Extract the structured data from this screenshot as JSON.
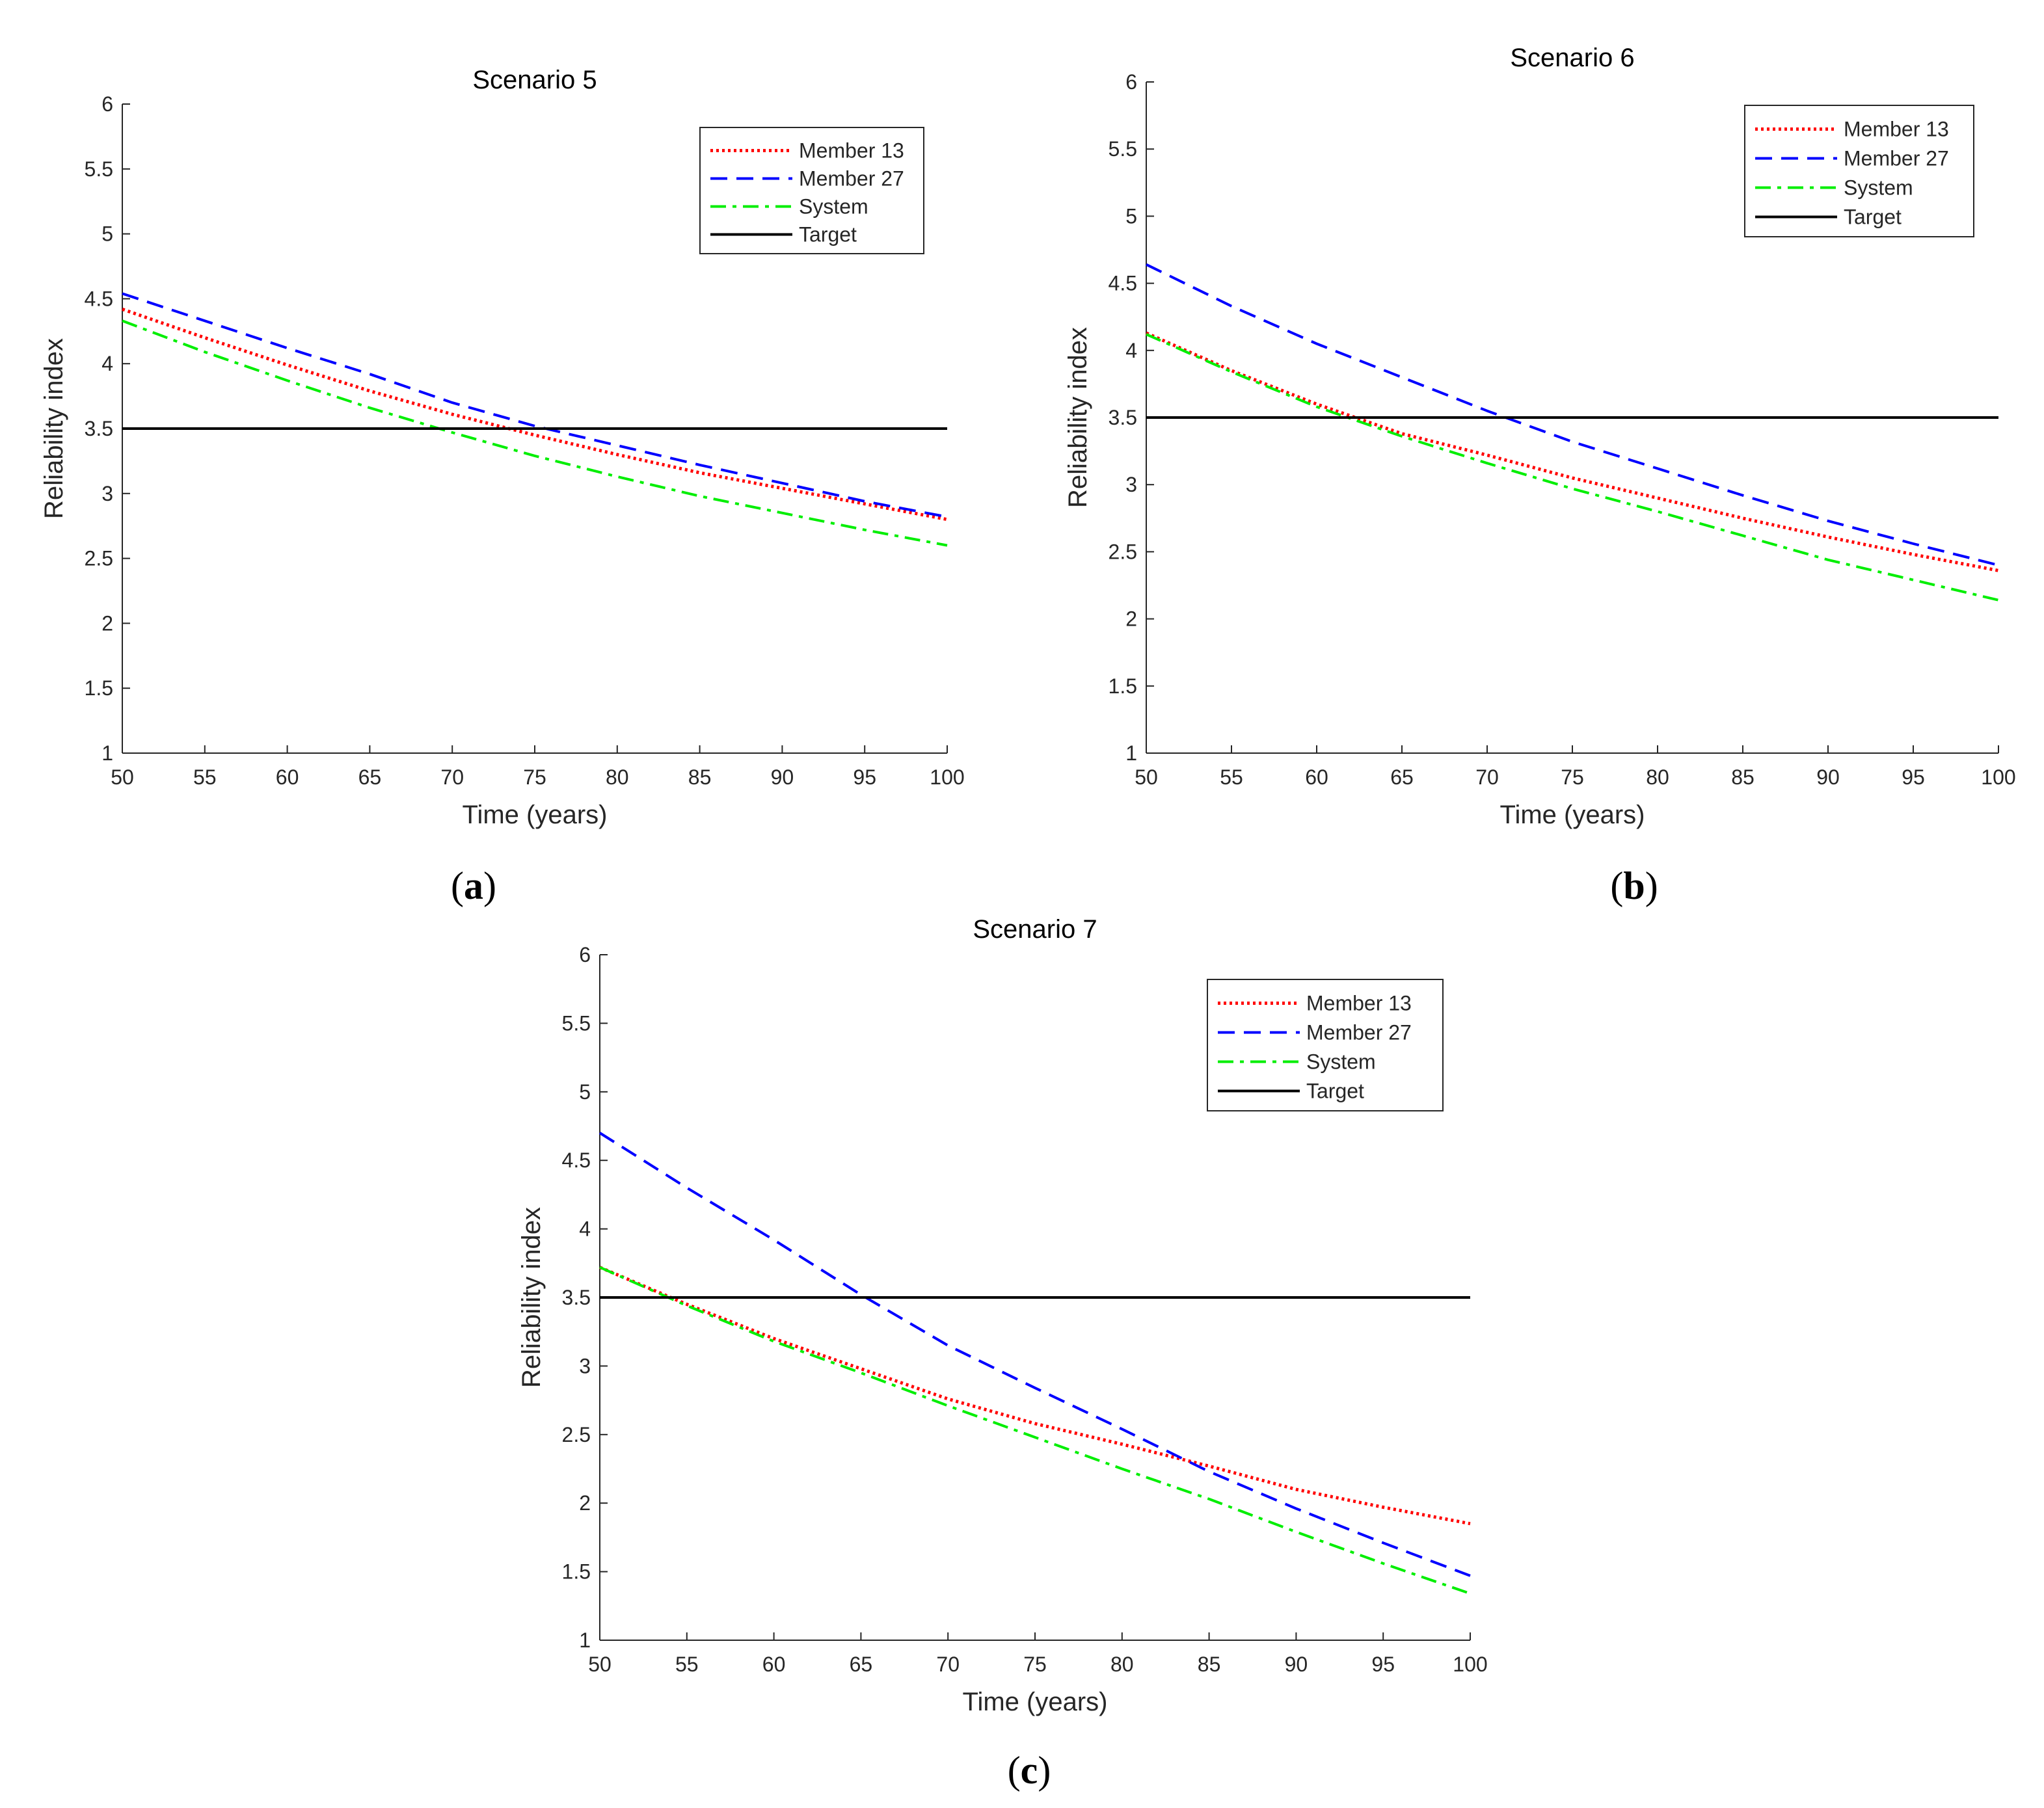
{
  "chart_data": [
    {
      "type": "line",
      "title": "Scenario 5",
      "panel_label": "a",
      "xlabel": "Time (years)",
      "ylabel": "Reliability index",
      "xlim": [
        50,
        100
      ],
      "ylim": [
        1,
        6
      ],
      "xticks": [
        50,
        55,
        60,
        65,
        70,
        75,
        80,
        85,
        90,
        95,
        100
      ],
      "yticks": [
        1,
        1.5,
        2,
        2.5,
        3,
        3.5,
        4,
        4.5,
        5,
        5.5,
        6
      ],
      "grid": false,
      "legend_position": "top-right",
      "x": [
        50,
        55,
        60,
        65,
        70,
        75,
        80,
        85,
        90,
        95,
        100
      ],
      "series": [
        {
          "name": "Member 13",
          "color": "#ff0000",
          "style": "dotted",
          "values": [
            4.42,
            4.2,
            3.99,
            3.79,
            3.61,
            3.45,
            3.3,
            3.16,
            3.04,
            2.92,
            2.8
          ]
        },
        {
          "name": "Member 27",
          "color": "#0000ff",
          "style": "dashed",
          "values": [
            4.54,
            4.33,
            4.12,
            3.92,
            3.7,
            3.52,
            3.37,
            3.22,
            3.08,
            2.94,
            2.82
          ]
        },
        {
          "name": "System",
          "color": "#00ee00",
          "style": "dashdot",
          "values": [
            4.33,
            4.09,
            3.87,
            3.66,
            3.47,
            3.29,
            3.13,
            2.98,
            2.85,
            2.72,
            2.6
          ]
        },
        {
          "name": "Target",
          "color": "#000000",
          "style": "solid",
          "values": [
            3.5,
            3.5,
            3.5,
            3.5,
            3.5,
            3.5,
            3.5,
            3.5,
            3.5,
            3.5,
            3.5
          ]
        }
      ]
    },
    {
      "type": "line",
      "title": "Scenario 6",
      "panel_label": "b",
      "xlabel": "Time (years)",
      "ylabel": "Reliability index",
      "xlim": [
        50,
        100
      ],
      "ylim": [
        1,
        6
      ],
      "xticks": [
        50,
        55,
        60,
        65,
        70,
        75,
        80,
        85,
        90,
        95,
        100
      ],
      "yticks": [
        1,
        1.5,
        2,
        2.5,
        3,
        3.5,
        4,
        4.5,
        5,
        5.5,
        6
      ],
      "grid": false,
      "legend_position": "top-right",
      "x": [
        50,
        55,
        60,
        65,
        70,
        75,
        80,
        85,
        90,
        95,
        100
      ],
      "series": [
        {
          "name": "Member 13",
          "color": "#ff0000",
          "style": "dotted",
          "values": [
            4.13,
            3.85,
            3.6,
            3.38,
            3.22,
            3.05,
            2.9,
            2.75,
            2.61,
            2.48,
            2.36
          ]
        },
        {
          "name": "Member 27",
          "color": "#0000ff",
          "style": "dashed",
          "values": [
            4.64,
            4.33,
            4.05,
            3.8,
            3.55,
            3.32,
            3.12,
            2.92,
            2.73,
            2.56,
            2.4
          ]
        },
        {
          "name": "System",
          "color": "#00ee00",
          "style": "dashdot",
          "values": [
            4.12,
            3.84,
            3.58,
            3.36,
            3.16,
            2.97,
            2.8,
            2.62,
            2.44,
            2.29,
            2.14
          ]
        },
        {
          "name": "Target",
          "color": "#000000",
          "style": "solid",
          "values": [
            3.5,
            3.5,
            3.5,
            3.5,
            3.5,
            3.5,
            3.5,
            3.5,
            3.5,
            3.5,
            3.5
          ]
        }
      ]
    },
    {
      "type": "line",
      "title": "Scenario 7",
      "panel_label": "c",
      "xlabel": "Time (years)",
      "ylabel": "Reliability index",
      "xlim": [
        50,
        100
      ],
      "ylim": [
        1,
        6
      ],
      "xticks": [
        50,
        55,
        60,
        65,
        70,
        75,
        80,
        85,
        90,
        95,
        100
      ],
      "yticks": [
        1,
        1.5,
        2,
        2.5,
        3,
        3.5,
        4,
        4.5,
        5,
        5.5,
        6
      ],
      "grid": false,
      "legend_position": "top-right",
      "x": [
        50,
        55,
        60,
        65,
        70,
        75,
        80,
        85,
        90,
        95,
        100
      ],
      "series": [
        {
          "name": "Member 13",
          "color": "#ff0000",
          "style": "dotted",
          "values": [
            3.72,
            3.45,
            3.2,
            2.98,
            2.76,
            2.58,
            2.43,
            2.27,
            2.1,
            1.97,
            1.85
          ]
        },
        {
          "name": "Member 27",
          "color": "#0000ff",
          "style": "dashed",
          "values": [
            4.7,
            4.3,
            3.92,
            3.52,
            3.15,
            2.84,
            2.54,
            2.23,
            1.96,
            1.71,
            1.47
          ]
        },
        {
          "name": "System",
          "color": "#00ee00",
          "style": "dashdot",
          "values": [
            3.72,
            3.44,
            3.18,
            2.95,
            2.71,
            2.48,
            2.25,
            2.03,
            1.79,
            1.56,
            1.34
          ]
        },
        {
          "name": "Target",
          "color": "#000000",
          "style": "solid",
          "values": [
            3.5,
            3.5,
            3.5,
            3.5,
            3.5,
            3.5,
            3.5,
            3.5,
            3.5,
            3.5,
            3.5
          ]
        }
      ]
    }
  ]
}
